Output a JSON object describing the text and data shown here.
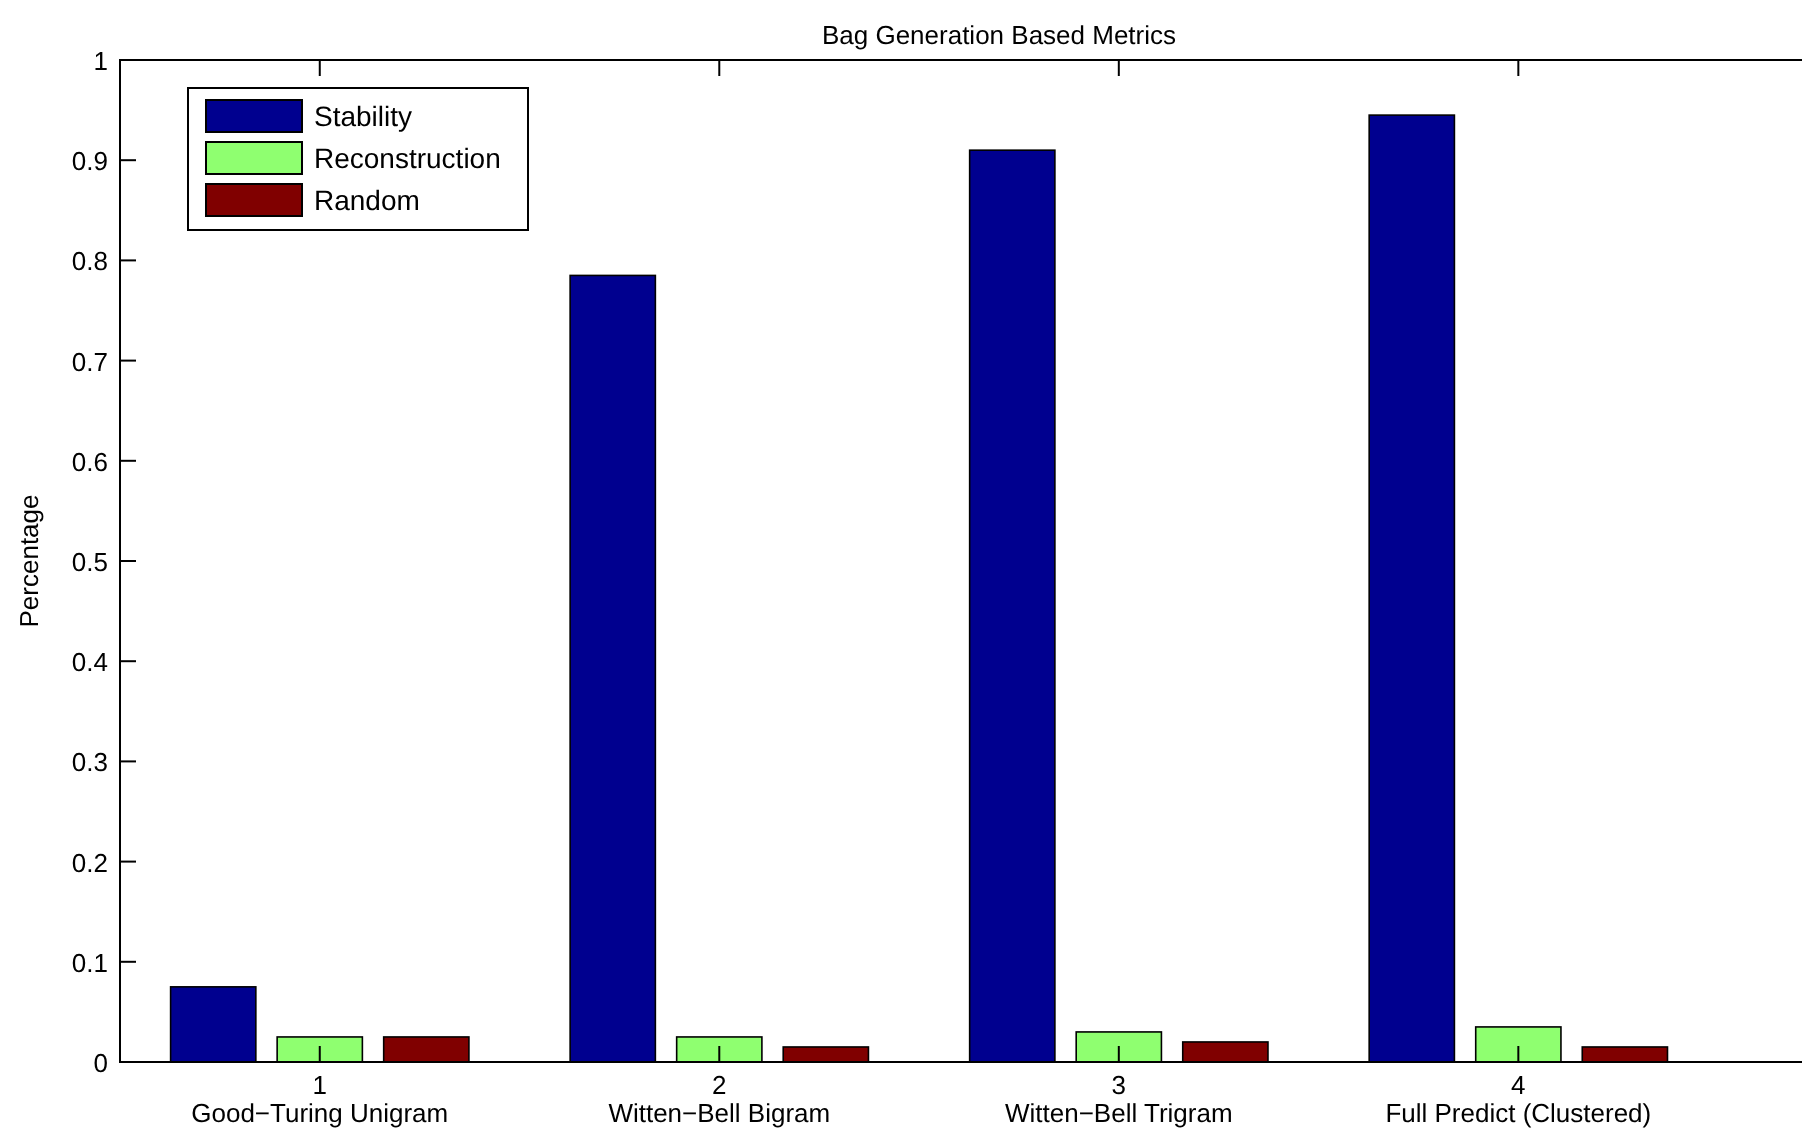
{
  "chart_data": {
    "type": "bar",
    "title": "Bag Generation Based Metrics",
    "ylabel": "Percentage",
    "categories": [
      "1\nGood−Turing Unigram",
      "2\nWitten−Bell Bigram",
      "3\nWitten−Bell Trigram",
      "4\nFull Predict (Clustered)"
    ],
    "series": [
      {
        "name": "Stability",
        "color": "#00008f",
        "values": [
          0.075,
          0.785,
          0.91,
          0.945
        ]
      },
      {
        "name": "Reconstruction",
        "color": "#8fff70",
        "values": [
          0.025,
          0.025,
          0.03,
          0.035
        ]
      },
      {
        "name": "Random",
        "color": "#800000",
        "values": [
          0.025,
          0.015,
          0.02,
          0.015
        ]
      }
    ],
    "ylim": [
      0,
      1
    ],
    "yticks": [
      {
        "value": 0,
        "label": "0"
      },
      {
        "value": 0.1,
        "label": "0.1"
      },
      {
        "value": 0.2,
        "label": "0.2"
      },
      {
        "value": 0.3,
        "label": "0.3"
      },
      {
        "value": 0.4,
        "label": "0.4"
      },
      {
        "value": 0.5,
        "label": "0.5"
      },
      {
        "value": 0.6,
        "label": "0.6"
      },
      {
        "value": 0.7,
        "label": "0.7"
      },
      {
        "value": 0.8,
        "label": "0.8"
      },
      {
        "value": 0.9,
        "label": "0.9"
      },
      {
        "value": 1,
        "label": "1"
      }
    ],
    "legend": "top left"
  }
}
